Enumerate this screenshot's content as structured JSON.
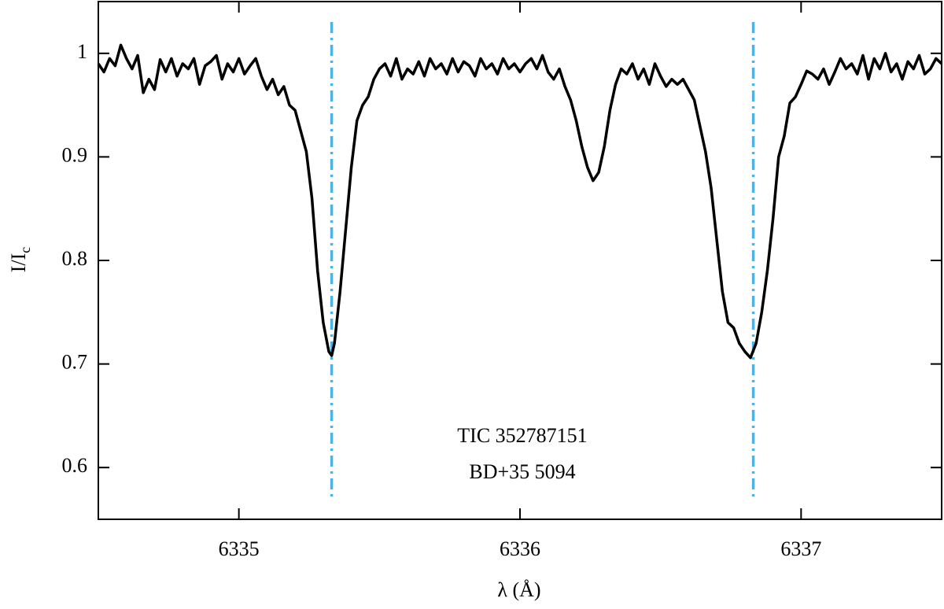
{
  "chart_data": {
    "type": "line",
    "xlabel": "λ (Å)",
    "ylabel": {
      "text": "I/I",
      "subscript": "c"
    },
    "xlim": [
      6334.5,
      6337.5
    ],
    "ylim": [
      0.55,
      1.05
    ],
    "xticks": [
      6335,
      6336,
      6337
    ],
    "yticks": [
      0.6,
      0.7,
      0.8,
      0.9,
      1
    ],
    "vlines": {
      "x": [
        6335.33,
        6336.83
      ],
      "color": "#4db3e6",
      "style": "dashdot"
    },
    "annotations": [
      "TIC 352787151",
      "BD+35 5094"
    ],
    "x": [
      6334.5,
      6334.52,
      6334.54,
      6334.56,
      6334.58,
      6334.6,
      6334.62,
      6334.64,
      6334.66,
      6334.68,
      6334.7,
      6334.72,
      6334.74,
      6334.76,
      6334.78,
      6334.8,
      6334.82,
      6334.84,
      6334.86,
      6334.88,
      6334.9,
      6334.92,
      6334.94,
      6334.96,
      6334.98,
      6335.0,
      6335.02,
      6335.04,
      6335.06,
      6335.08,
      6335.1,
      6335.12,
      6335.14,
      6335.16,
      6335.18,
      6335.2,
      6335.22,
      6335.24,
      6335.26,
      6335.28,
      6335.3,
      6335.32,
      6335.33,
      6335.34,
      6335.36,
      6335.38,
      6335.4,
      6335.42,
      6335.44,
      6335.46,
      6335.48,
      6335.5,
      6335.52,
      6335.54,
      6335.56,
      6335.58,
      6335.6,
      6335.62,
      6335.64,
      6335.66,
      6335.68,
      6335.7,
      6335.72,
      6335.74,
      6335.76,
      6335.78,
      6335.8,
      6335.82,
      6335.84,
      6335.86,
      6335.88,
      6335.9,
      6335.92,
      6335.94,
      6335.96,
      6335.98,
      6336.0,
      6336.02,
      6336.04,
      6336.06,
      6336.08,
      6336.1,
      6336.12,
      6336.14,
      6336.16,
      6336.18,
      6336.2,
      6336.22,
      6336.24,
      6336.26,
      6336.28,
      6336.3,
      6336.32,
      6336.34,
      6336.36,
      6336.38,
      6336.4,
      6336.42,
      6336.44,
      6336.46,
      6336.48,
      6336.5,
      6336.52,
      6336.54,
      6336.56,
      6336.58,
      6336.6,
      6336.62,
      6336.64,
      6336.66,
      6336.68,
      6336.7,
      6336.72,
      6336.74,
      6336.76,
      6336.78,
      6336.8,
      6336.82,
      6336.84,
      6336.86,
      6336.88,
      6336.9,
      6336.92,
      6336.94,
      6336.96,
      6336.98,
      6337.0,
      6337.02,
      6337.04,
      6337.06,
      6337.08,
      6337.1,
      6337.12,
      6337.14,
      6337.16,
      6337.18,
      6337.2,
      6337.22,
      6337.24,
      6337.26,
      6337.28,
      6337.3,
      6337.32,
      6337.34,
      6337.36,
      6337.38,
      6337.4,
      6337.42,
      6337.44,
      6337.46,
      6337.48,
      6337.5
    ],
    "series": [
      {
        "color": "#000000",
        "values": [
          0.99,
          0.982,
          0.995,
          0.988,
          1.008,
          0.995,
          0.985,
          0.998,
          0.962,
          0.975,
          0.965,
          0.994,
          0.982,
          0.995,
          0.978,
          0.99,
          0.985,
          0.995,
          0.97,
          0.988,
          0.992,
          0.998,
          0.975,
          0.99,
          0.982,
          0.995,
          0.98,
          0.988,
          0.995,
          0.978,
          0.965,
          0.975,
          0.96,
          0.968,
          0.95,
          0.945,
          0.925,
          0.905,
          0.86,
          0.79,
          0.74,
          0.712,
          0.708,
          0.72,
          0.77,
          0.83,
          0.89,
          0.935,
          0.95,
          0.958,
          0.975,
          0.985,
          0.99,
          0.978,
          0.995,
          0.975,
          0.985,
          0.98,
          0.992,
          0.978,
          0.995,
          0.985,
          0.99,
          0.98,
          0.995,
          0.982,
          0.992,
          0.988,
          0.978,
          0.995,
          0.985,
          0.99,
          0.98,
          0.995,
          0.985,
          0.99,
          0.982,
          0.99,
          0.995,
          0.985,
          0.998,
          0.982,
          0.975,
          0.985,
          0.968,
          0.955,
          0.935,
          0.91,
          0.89,
          0.877,
          0.885,
          0.91,
          0.945,
          0.97,
          0.985,
          0.98,
          0.99,
          0.975,
          0.985,
          0.97,
          0.99,
          0.978,
          0.968,
          0.975,
          0.97,
          0.975,
          0.965,
          0.955,
          0.93,
          0.905,
          0.87,
          0.82,
          0.77,
          0.74,
          0.735,
          0.72,
          0.712,
          0.706,
          0.72,
          0.75,
          0.79,
          0.84,
          0.9,
          0.92,
          0.952,
          0.958,
          0.97,
          0.983,
          0.98,
          0.975,
          0.985,
          0.97,
          0.982,
          0.995,
          0.985,
          0.99,
          0.98,
          0.998,
          0.975,
          0.995,
          0.985,
          1.0,
          0.982,
          0.99,
          0.975,
          0.992,
          0.985,
          0.998,
          0.98,
          0.985,
          0.995,
          0.99
        ]
      }
    ]
  }
}
